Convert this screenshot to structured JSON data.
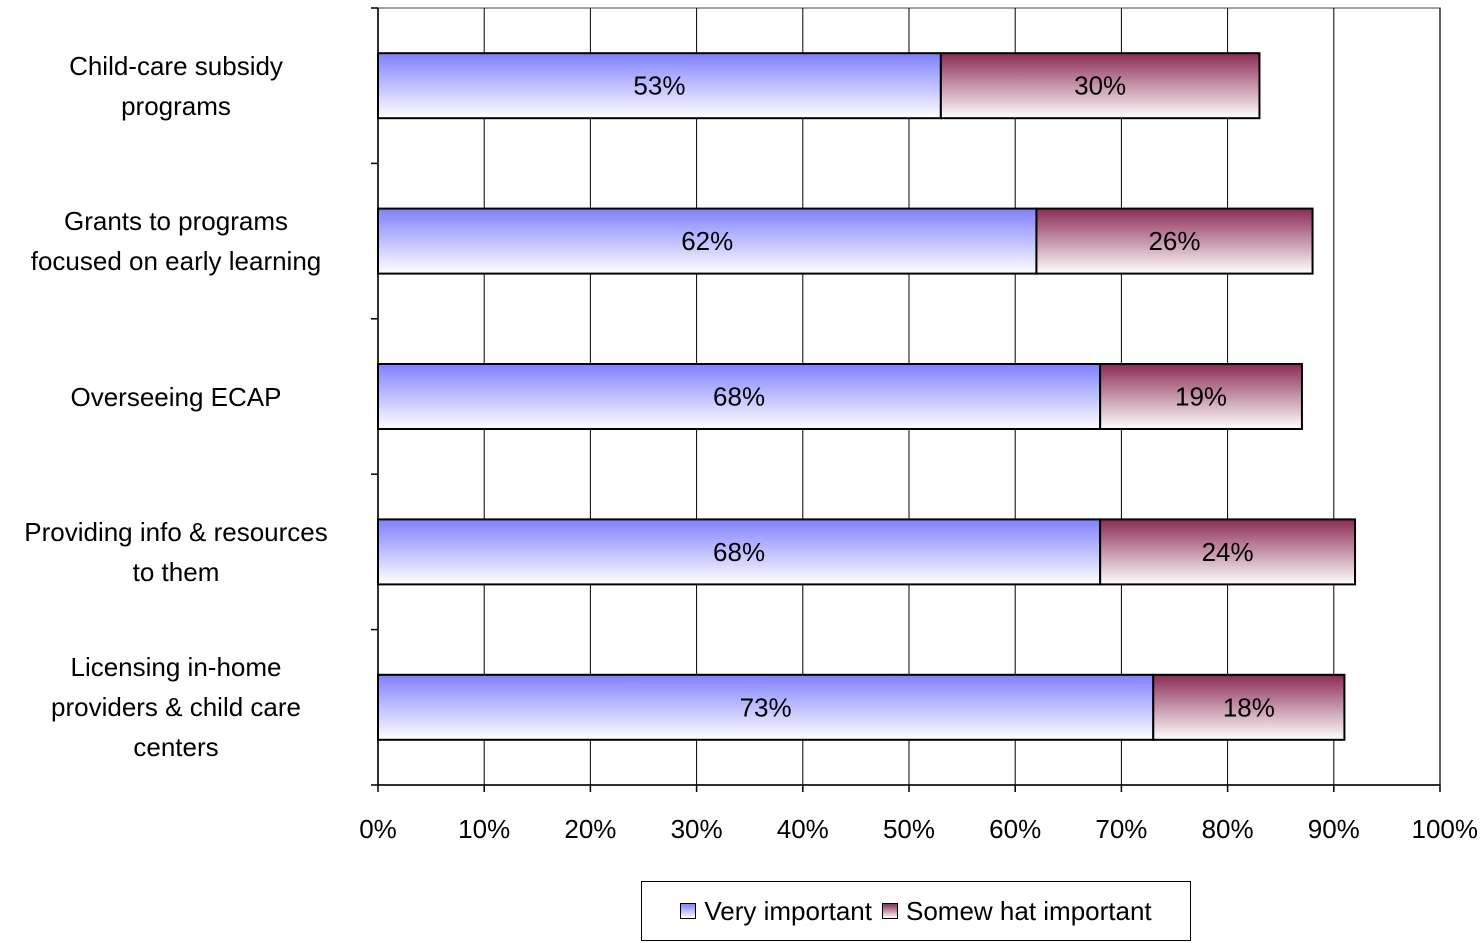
{
  "chart_data": {
    "type": "bar",
    "orientation": "horizontal",
    "stacked": true,
    "categories": [
      "Child-care subsidy\nprograms",
      "Grants to programs\nfocused on early learning",
      "Overseeing ECAP",
      "Providing info & resources\nto them",
      "Licensing in-home\nproviders & child care\ncenters"
    ],
    "series": [
      {
        "name": "Very important",
        "values": [
          53,
          62,
          68,
          68,
          73
        ],
        "labels": [
          "53%",
          "62%",
          "68%",
          "68%",
          "73%"
        ],
        "color": "#8080ff"
      },
      {
        "name": "Somew hat important",
        "values": [
          30,
          26,
          19,
          24,
          18
        ],
        "labels": [
          "30%",
          "26%",
          "19%",
          "24%",
          "18%"
        ],
        "color": "#8b2c55"
      }
    ],
    "xlim": [
      0,
      100
    ],
    "xticks": [
      0,
      10,
      20,
      30,
      40,
      50,
      60,
      70,
      80,
      90,
      100
    ],
    "xtick_labels": [
      "0%",
      "10%",
      "20%",
      "30%",
      "40%",
      "50%",
      "60%",
      "70%",
      "80%",
      "90%",
      "100%"
    ],
    "grid": true,
    "legend_position": "bottom"
  }
}
